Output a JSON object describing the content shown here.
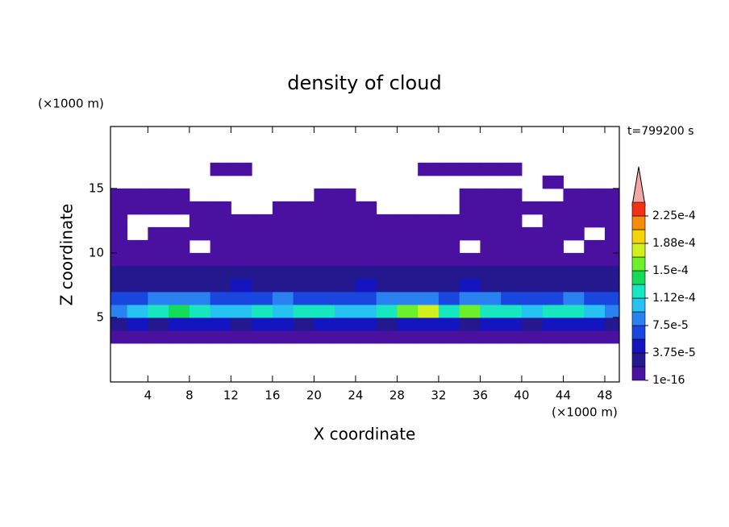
{
  "chart_data": {
    "type": "contour",
    "title": "density of cloud",
    "y_unit": "(×1000 m)",
    "x_unit": "(×1000 m)",
    "annotation": "t=799200 s",
    "x_label": "X coordinate",
    "y_label": "Z coordinate",
    "xlim": [
      0.4,
      49.4
    ],
    "ylim": [
      0,
      19.8
    ],
    "xticks": [
      4,
      8,
      12,
      16,
      20,
      24,
      28,
      32,
      36,
      40,
      44,
      48
    ],
    "yticks": [
      5,
      10,
      15
    ],
    "x": [
      1,
      3,
      5,
      7,
      9,
      11,
      13,
      15,
      17,
      19,
      21,
      23,
      25,
      27,
      29,
      31,
      33,
      35,
      37,
      39,
      41,
      43,
      45,
      47,
      49
    ],
    "z": [
      3.5,
      4.5,
      5.5,
      6.5,
      7.5,
      8.5,
      9.5,
      10.5,
      11.5,
      12.5,
      13.5,
      14.5,
      15.5,
      16.5
    ],
    "values": [
      [
        5e-06,
        5e-06,
        5e-06,
        5e-06,
        5e-06,
        5e-06,
        5e-06,
        5e-06,
        5e-06,
        5e-06,
        5e-06,
        5e-06,
        5e-06,
        5e-06,
        5e-06,
        5e-06,
        5e-06,
        5e-06,
        5e-06,
        5e-06,
        5e-06,
        5e-06,
        5e-06,
        5e-06,
        5e-06
      ],
      [
        3e-05,
        4e-05,
        3e-05,
        4e-05,
        5e-05,
        4e-05,
        3e-05,
        4e-05,
        4e-05,
        3e-05,
        4e-05,
        5e-05,
        4e-05,
        3e-05,
        4e-05,
        4e-05,
        5e-05,
        3e-05,
        4e-05,
        4e-05,
        3e-05,
        4e-05,
        5e-05,
        4e-05,
        3e-05
      ],
      [
        9e-05,
        0.00011,
        0.00012,
        0.00014,
        0.00012,
        0.00011,
        0.0001,
        0.00012,
        0.00011,
        0.00013,
        0.00012,
        0.0001,
        0.00011,
        0.00012,
        0.00015,
        0.00017,
        0.00013,
        0.00016,
        0.00013,
        0.00012,
        0.00011,
        0.00013,
        0.00012,
        0.0001,
        9e-05
      ],
      [
        6e-05,
        7e-05,
        8e-05,
        9e-05,
        8e-05,
        7e-05,
        6e-05,
        7e-05,
        8e-05,
        7e-05,
        6e-05,
        7e-05,
        6e-05,
        8e-05,
        9e-05,
        8e-05,
        7e-05,
        9e-05,
        8e-05,
        7e-05,
        6e-05,
        7e-05,
        8e-05,
        7e-05,
        6e-05
      ],
      [
        3e-05,
        3.5e-05,
        3e-05,
        2.5e-05,
        3e-05,
        3.5e-05,
        4e-05,
        3e-05,
        2.5e-05,
        3e-05,
        3.5e-05,
        3e-05,
        4e-05,
        3e-05,
        3e-05,
        3.5e-05,
        3e-05,
        4e-05,
        3e-05,
        2.5e-05,
        3e-05,
        3.5e-05,
        3e-05,
        3e-05,
        3.5e-05
      ],
      [
        2e-05,
        2.5e-05,
        2e-05,
        2.5e-05,
        2e-05,
        2e-05,
        2.5e-05,
        2e-05,
        2e-05,
        2.5e-05,
        2e-05,
        2e-05,
        2.5e-05,
        2e-05,
        2.5e-05,
        2e-05,
        2e-05,
        2.5e-05,
        2e-05,
        2e-05,
        2.5e-05,
        2e-05,
        2e-05,
        2.5e-05,
        2e-05
      ],
      [
        1e-05,
        1.5e-05,
        1e-05,
        1e-05,
        1.5e-05,
        1e-05,
        1e-05,
        1.5e-05,
        1e-05,
        1e-05,
        1.5e-05,
        1e-05,
        1e-05,
        1.5e-05,
        1e-05,
        1e-05,
        1.5e-05,
        1e-05,
        1e-05,
        1.5e-05,
        1e-05,
        1e-05,
        1.5e-05,
        1e-05,
        1e-05
      ],
      [
        5e-06,
        1e-05,
        5e-06,
        5e-06,
        null,
        5e-06,
        1e-05,
        5e-06,
        5e-06,
        5e-06,
        1e-05,
        5e-06,
        5e-06,
        5e-06,
        1e-05,
        5e-06,
        5e-06,
        null,
        5e-06,
        5e-06,
        1e-05,
        5e-06,
        null,
        5e-06,
        5e-06
      ],
      [
        5e-06,
        null,
        5e-06,
        5e-06,
        5e-06,
        5e-06,
        5e-06,
        5e-06,
        5e-06,
        5e-06,
        5e-06,
        5e-06,
        5e-06,
        5e-06,
        5e-06,
        5e-06,
        5e-06,
        5e-06,
        5e-06,
        5e-06,
        5e-06,
        5e-06,
        5e-06,
        null,
        5e-06
      ],
      [
        5e-06,
        null,
        null,
        null,
        5e-06,
        5e-06,
        5e-06,
        5e-06,
        5e-06,
        5e-06,
        5e-06,
        5e-06,
        5e-06,
        5e-06,
        5e-06,
        5e-06,
        5e-06,
        5e-06,
        5e-06,
        5e-06,
        null,
        5e-06,
        5e-06,
        5e-06,
        5e-06
      ],
      [
        5e-06,
        5e-06,
        5e-06,
        5e-06,
        5e-06,
        5e-06,
        null,
        null,
        5e-06,
        5e-06,
        5e-06,
        5e-06,
        5e-06,
        null,
        null,
        null,
        null,
        5e-06,
        5e-06,
        5e-06,
        5e-06,
        5e-06,
        5e-06,
        5e-06,
        5e-06
      ],
      [
        5e-06,
        5e-06,
        5e-06,
        5e-06,
        null,
        null,
        null,
        null,
        null,
        null,
        5e-06,
        5e-06,
        null,
        null,
        null,
        null,
        null,
        5e-06,
        5e-06,
        5e-06,
        null,
        null,
        5e-06,
        5e-06,
        5e-06
      ],
      [
        null,
        null,
        null,
        null,
        null,
        null,
        null,
        null,
        null,
        null,
        null,
        null,
        null,
        null,
        null,
        null,
        null,
        null,
        null,
        null,
        null,
        5e-06,
        null,
        null,
        null
      ],
      [
        null,
        null,
        null,
        null,
        null,
        5e-06,
        5e-06,
        null,
        null,
        null,
        null,
        null,
        null,
        null,
        null,
        5e-06,
        5e-06,
        5e-06,
        5e-06,
        5e-06,
        null,
        null,
        null,
        null,
        null
      ]
    ],
    "levels": [
      1e-16,
      1.875e-05,
      3.75e-05,
      5.625e-05,
      7.5e-05,
      9.375e-05,
      0.0001125,
      0.00013125,
      0.00015,
      0.00016875,
      0.0001875,
      0.00020625,
      0.000225
    ],
    "colors": [
      "#4a10a0",
      "#23188e",
      "#1414c0",
      "#1a46e0",
      "#2a82f0",
      "#28c2f2",
      "#18e6c0",
      "#14dc5a",
      "#6cf02c",
      "#d2f01e",
      "#f5d20a",
      "#f58c0a",
      "#f03214"
    ],
    "colorbar_ticks": [
      {
        "value": 1e-16,
        "label": "1e-16"
      },
      {
        "value": 3.75e-05,
        "label": "3.75e-5"
      },
      {
        "value": 7.5e-05,
        "label": "7.5e-5"
      },
      {
        "value": 0.0001125,
        "label": "1.12e-4"
      },
      {
        "value": 0.00015,
        "label": "1.5e-4"
      },
      {
        "value": 0.0001875,
        "label": "1.88e-4"
      },
      {
        "value": 0.000225,
        "label": "2.25e-4"
      }
    ]
  }
}
